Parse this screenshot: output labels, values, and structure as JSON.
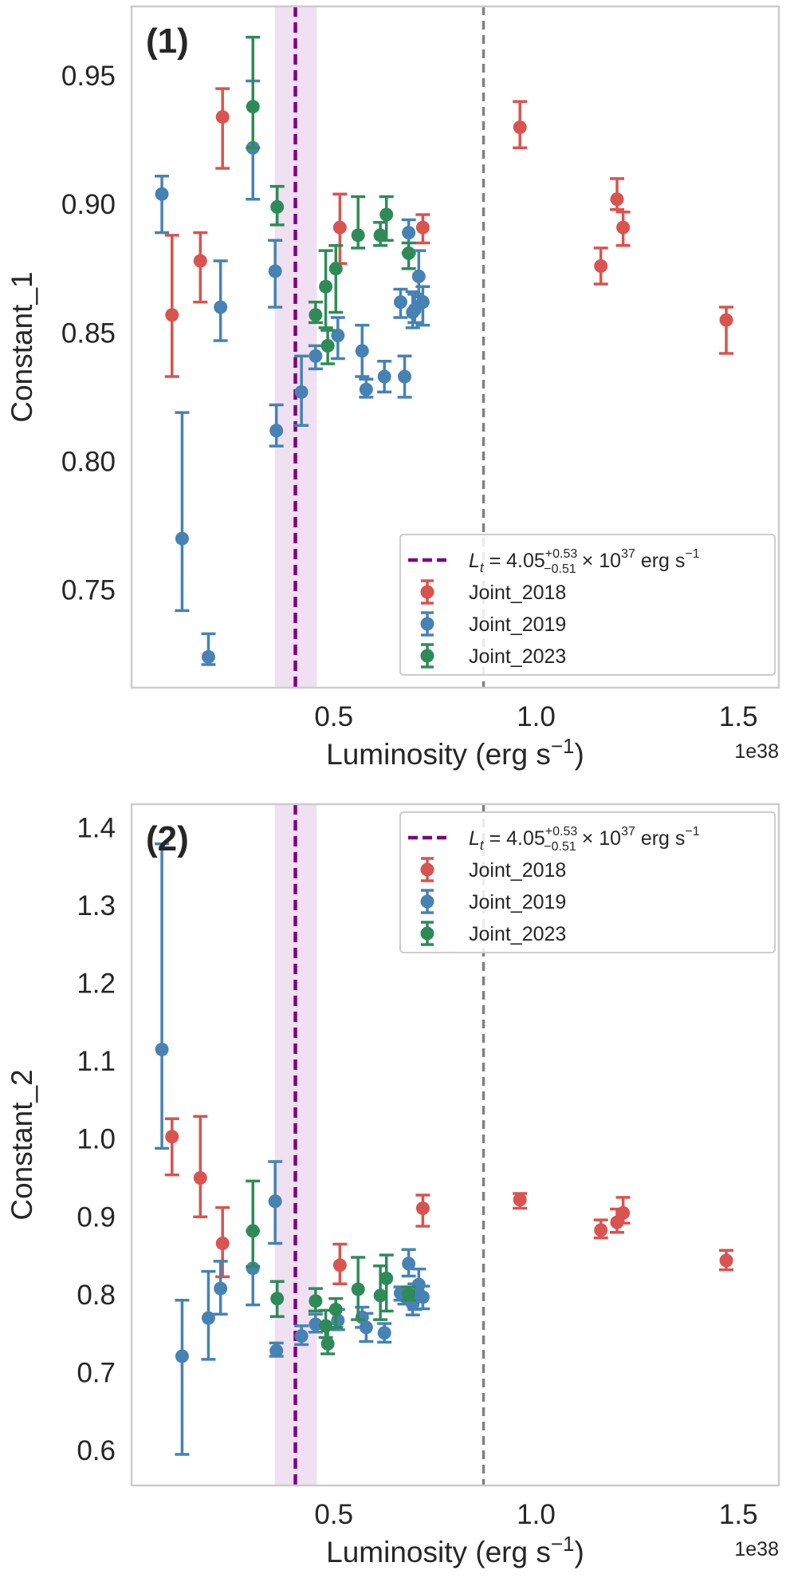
{
  "colors": {
    "joint_2018": "#d9534f",
    "joint_2019": "#4682b4",
    "joint_2023": "#2e8b57",
    "threshold_line": "#800080",
    "threshold_band": "#efe0f2",
    "reference_line": "#808080",
    "frame": "#cccccc"
  },
  "chart_data": [
    {
      "type": "scatter",
      "panel_label": "(1)",
      "xlabel": "Luminosity (erg s$^{-1}$)",
      "xlabel_main": "Luminosity (erg s",
      "xlabel_sup": "−1",
      "xlabel_close": ")",
      "x_offset_text": "1e38",
      "ylabel": "Constant_1",
      "xlim": [
        0.0,
        1.6
      ],
      "ylim": [
        0.712,
        0.977
      ],
      "x_ticks": [
        0.5,
        1.0,
        1.5
      ],
      "x_tick_labels": [
        "0.5",
        "1.0",
        "1.5"
      ],
      "y_ticks": [
        0.75,
        0.8,
        0.85,
        0.9,
        0.95
      ],
      "y_tick_labels": [
        "0.75",
        "0.80",
        "0.85",
        "0.90",
        "0.95"
      ],
      "grid": false,
      "legend_position": "lower-right",
      "threshold": {
        "x": 0.405,
        "band": [
          0.354,
          0.458
        ]
      },
      "reference_line_x": 0.87,
      "series": [
        {
          "name": "Joint_2018",
          "color_key": "joint_2018",
          "points": [
            {
              "x": 0.1,
              "y": 0.857,
              "lo": 0.833,
              "hi": 0.888
            },
            {
              "x": 0.17,
              "y": 0.878,
              "lo": 0.862,
              "hi": 0.889
            },
            {
              "x": 0.225,
              "y": 0.934,
              "lo": 0.914,
              "hi": 0.945
            },
            {
              "x": 0.515,
              "y": 0.891,
              "lo": 0.877,
              "hi": 0.904
            },
            {
              "x": 0.72,
              "y": 0.891,
              "lo": 0.885,
              "hi": 0.896
            },
            {
              "x": 0.96,
              "y": 0.93,
              "lo": 0.922,
              "hi": 0.94
            },
            {
              "x": 1.16,
              "y": 0.876,
              "lo": 0.869,
              "hi": 0.883
            },
            {
              "x": 1.2,
              "y": 0.902,
              "lo": 0.898,
              "hi": 0.91
            },
            {
              "x": 1.215,
              "y": 0.891,
              "lo": 0.884,
              "hi": 0.897
            },
            {
              "x": 1.47,
              "y": 0.855,
              "lo": 0.842,
              "hi": 0.86
            }
          ]
        },
        {
          "name": "Joint_2019",
          "color_key": "joint_2019",
          "points": [
            {
              "x": 0.075,
              "y": 0.904,
              "lo": 0.889,
              "hi": 0.911
            },
            {
              "x": 0.125,
              "y": 0.77,
              "lo": 0.742,
              "hi": 0.819
            },
            {
              "x": 0.19,
              "y": 0.724,
              "lo": 0.721,
              "hi": 0.733
            },
            {
              "x": 0.22,
              "y": 0.86,
              "lo": 0.847,
              "hi": 0.878
            },
            {
              "x": 0.3,
              "y": 0.922,
              "lo": 0.902,
              "hi": 0.948
            },
            {
              "x": 0.355,
              "y": 0.874,
              "lo": 0.86,
              "hi": 0.886
            },
            {
              "x": 0.358,
              "y": 0.812,
              "lo": 0.806,
              "hi": 0.822
            },
            {
              "x": 0.42,
              "y": 0.827,
              "lo": 0.814,
              "hi": 0.841
            },
            {
              "x": 0.455,
              "y": 0.841,
              "lo": 0.836,
              "hi": 0.845
            },
            {
              "x": 0.51,
              "y": 0.849,
              "lo": 0.84,
              "hi": 0.856
            },
            {
              "x": 0.57,
              "y": 0.843,
              "lo": 0.833,
              "hi": 0.853
            },
            {
              "x": 0.58,
              "y": 0.828,
              "lo": 0.825,
              "hi": 0.832
            },
            {
              "x": 0.625,
              "y": 0.833,
              "lo": 0.827,
              "hi": 0.839
            },
            {
              "x": 0.665,
              "y": 0.862,
              "lo": 0.856,
              "hi": 0.867
            },
            {
              "x": 0.675,
              "y": 0.833,
              "lo": 0.825,
              "hi": 0.841
            },
            {
              "x": 0.685,
              "y": 0.889,
              "lo": 0.881,
              "hi": 0.894
            },
            {
              "x": 0.695,
              "y": 0.858,
              "lo": 0.852,
              "hi": 0.866
            },
            {
              "x": 0.7,
              "y": 0.859,
              "lo": 0.854,
              "hi": 0.865
            },
            {
              "x": 0.71,
              "y": 0.872,
              "lo": 0.864,
              "hi": 0.882
            },
            {
              "x": 0.72,
              "y": 0.862,
              "lo": 0.853,
              "hi": 0.868
            }
          ]
        },
        {
          "name": "Joint_2023",
          "color_key": "joint_2023",
          "points": [
            {
              "x": 0.3,
              "y": 0.938,
              "lo": 0.922,
              "hi": 0.965
            },
            {
              "x": 0.36,
              "y": 0.899,
              "lo": 0.892,
              "hi": 0.907
            },
            {
              "x": 0.455,
              "y": 0.857,
              "lo": 0.854,
              "hi": 0.862
            },
            {
              "x": 0.48,
              "y": 0.868,
              "lo": 0.852,
              "hi": 0.882
            },
            {
              "x": 0.485,
              "y": 0.845,
              "lo": 0.838,
              "hi": 0.851
            },
            {
              "x": 0.505,
              "y": 0.875,
              "lo": 0.858,
              "hi": 0.884
            },
            {
              "x": 0.56,
              "y": 0.888,
              "lo": 0.883,
              "hi": 0.903
            },
            {
              "x": 0.615,
              "y": 0.888,
              "lo": 0.884,
              "hi": 0.893
            },
            {
              "x": 0.63,
              "y": 0.896,
              "lo": 0.886,
              "hi": 0.903
            },
            {
              "x": 0.685,
              "y": 0.881,
              "lo": 0.875,
              "hi": 0.885
            }
          ]
        }
      ]
    },
    {
      "type": "scatter",
      "panel_label": "(2)",
      "xlabel": "Luminosity (erg s$^{-1}$)",
      "xlabel_main": "Luminosity (erg s",
      "xlabel_sup": "−1",
      "xlabel_close": ")",
      "x_offset_text": "1e38",
      "ylabel": "Constant_2",
      "xlim": [
        0.0,
        1.6
      ],
      "ylim": [
        0.555,
        1.43
      ],
      "x_ticks": [
        0.5,
        1.0,
        1.5
      ],
      "x_tick_labels": [
        "0.5",
        "1.0",
        "1.5"
      ],
      "y_ticks": [
        0.6,
        0.7,
        0.8,
        0.9,
        1.0,
        1.1,
        1.2,
        1.3,
        1.4
      ],
      "y_tick_labels": [
        "0.6",
        "0.7",
        "0.8",
        "0.9",
        "1.0",
        "1.1",
        "1.2",
        "1.3",
        "1.4"
      ],
      "grid": false,
      "legend_position": "upper-right",
      "threshold": {
        "x": 0.405,
        "band": [
          0.354,
          0.458
        ]
      },
      "reference_line_x": 0.87,
      "series": [
        {
          "name": "Joint_2018",
          "color_key": "joint_2018",
          "points": [
            {
              "x": 0.1,
              "y": 1.003,
              "lo": 0.954,
              "hi": 1.026
            },
            {
              "x": 0.17,
              "y": 0.95,
              "lo": 0.9,
              "hi": 1.029
            },
            {
              "x": 0.225,
              "y": 0.866,
              "lo": 0.823,
              "hi": 0.912
            },
            {
              "x": 0.515,
              "y": 0.838,
              "lo": 0.814,
              "hi": 0.865
            },
            {
              "x": 0.72,
              "y": 0.911,
              "lo": 0.888,
              "hi": 0.928
            },
            {
              "x": 0.96,
              "y": 0.922,
              "lo": 0.911,
              "hi": 0.93
            },
            {
              "x": 1.16,
              "y": 0.883,
              "lo": 0.873,
              "hi": 0.896
            },
            {
              "x": 1.2,
              "y": 0.893,
              "lo": 0.88,
              "hi": 0.91
            },
            {
              "x": 1.215,
              "y": 0.905,
              "lo": 0.892,
              "hi": 0.925
            },
            {
              "x": 1.47,
              "y": 0.844,
              "lo": 0.832,
              "hi": 0.857
            }
          ]
        },
        {
          "name": "Joint_2019",
          "color_key": "joint_2019",
          "points": [
            {
              "x": 0.075,
              "y": 1.115,
              "lo": 0.988,
              "hi": 1.379
            },
            {
              "x": 0.125,
              "y": 0.721,
              "lo": 0.595,
              "hi": 0.793
            },
            {
              "x": 0.19,
              "y": 0.77,
              "lo": 0.717,
              "hi": 0.83
            },
            {
              "x": 0.22,
              "y": 0.808,
              "lo": 0.775,
              "hi": 0.843
            },
            {
              "x": 0.3,
              "y": 0.834,
              "lo": 0.787,
              "hi": 0.882
            },
            {
              "x": 0.355,
              "y": 0.92,
              "lo": 0.866,
              "hi": 0.971
            },
            {
              "x": 0.358,
              "y": 0.728,
              "lo": 0.721,
              "hi": 0.738
            },
            {
              "x": 0.42,
              "y": 0.747,
              "lo": 0.736,
              "hi": 0.76
            },
            {
              "x": 0.455,
              "y": 0.762,
              "lo": 0.752,
              "hi": 0.775
            },
            {
              "x": 0.51,
              "y": 0.767,
              "lo": 0.755,
              "hi": 0.781
            },
            {
              "x": 0.57,
              "y": 0.771,
              "lo": 0.758,
              "hi": 0.784
            },
            {
              "x": 0.58,
              "y": 0.758,
              "lo": 0.74,
              "hi": 0.776
            },
            {
              "x": 0.625,
              "y": 0.751,
              "lo": 0.739,
              "hi": 0.763
            },
            {
              "x": 0.665,
              "y": 0.802,
              "lo": 0.793,
              "hi": 0.81
            },
            {
              "x": 0.675,
              "y": 0.798,
              "lo": 0.788,
              "hi": 0.808
            },
            {
              "x": 0.685,
              "y": 0.84,
              "lo": 0.824,
              "hi": 0.858
            },
            {
              "x": 0.695,
              "y": 0.788,
              "lo": 0.774,
              "hi": 0.802
            },
            {
              "x": 0.7,
              "y": 0.797,
              "lo": 0.781,
              "hi": 0.814
            },
            {
              "x": 0.71,
              "y": 0.813,
              "lo": 0.8,
              "hi": 0.833
            },
            {
              "x": 0.72,
              "y": 0.797,
              "lo": 0.782,
              "hi": 0.811
            }
          ]
        },
        {
          "name": "Joint_2023",
          "color_key": "joint_2023",
          "points": [
            {
              "x": 0.3,
              "y": 0.882,
              "lo": 0.836,
              "hi": 0.946
            },
            {
              "x": 0.36,
              "y": 0.795,
              "lo": 0.772,
              "hi": 0.817
            },
            {
              "x": 0.455,
              "y": 0.792,
              "lo": 0.779,
              "hi": 0.808
            },
            {
              "x": 0.48,
              "y": 0.76,
              "lo": 0.745,
              "hi": 0.78
            },
            {
              "x": 0.485,
              "y": 0.737,
              "lo": 0.724,
              "hi": 0.757
            },
            {
              "x": 0.505,
              "y": 0.781,
              "lo": 0.758,
              "hi": 0.795
            },
            {
              "x": 0.56,
              "y": 0.807,
              "lo": 0.768,
              "hi": 0.848
            },
            {
              "x": 0.615,
              "y": 0.799,
              "lo": 0.768,
              "hi": 0.837
            },
            {
              "x": 0.63,
              "y": 0.821,
              "lo": 0.779,
              "hi": 0.851
            },
            {
              "x": 0.685,
              "y": 0.801,
              "lo": 0.793,
              "hi": 0.81
            }
          ]
        }
      ]
    }
  ],
  "legend": {
    "threshold_label": {
      "prefix": "L",
      "subscript": "t",
      "equals_value": " = 4.05",
      "sup_plus": "+0.53",
      "sub_minus": "−0.51",
      "times": " × 10",
      "exponent": "37",
      "unit": " erg s",
      "unit_exp": "−1"
    }
  }
}
